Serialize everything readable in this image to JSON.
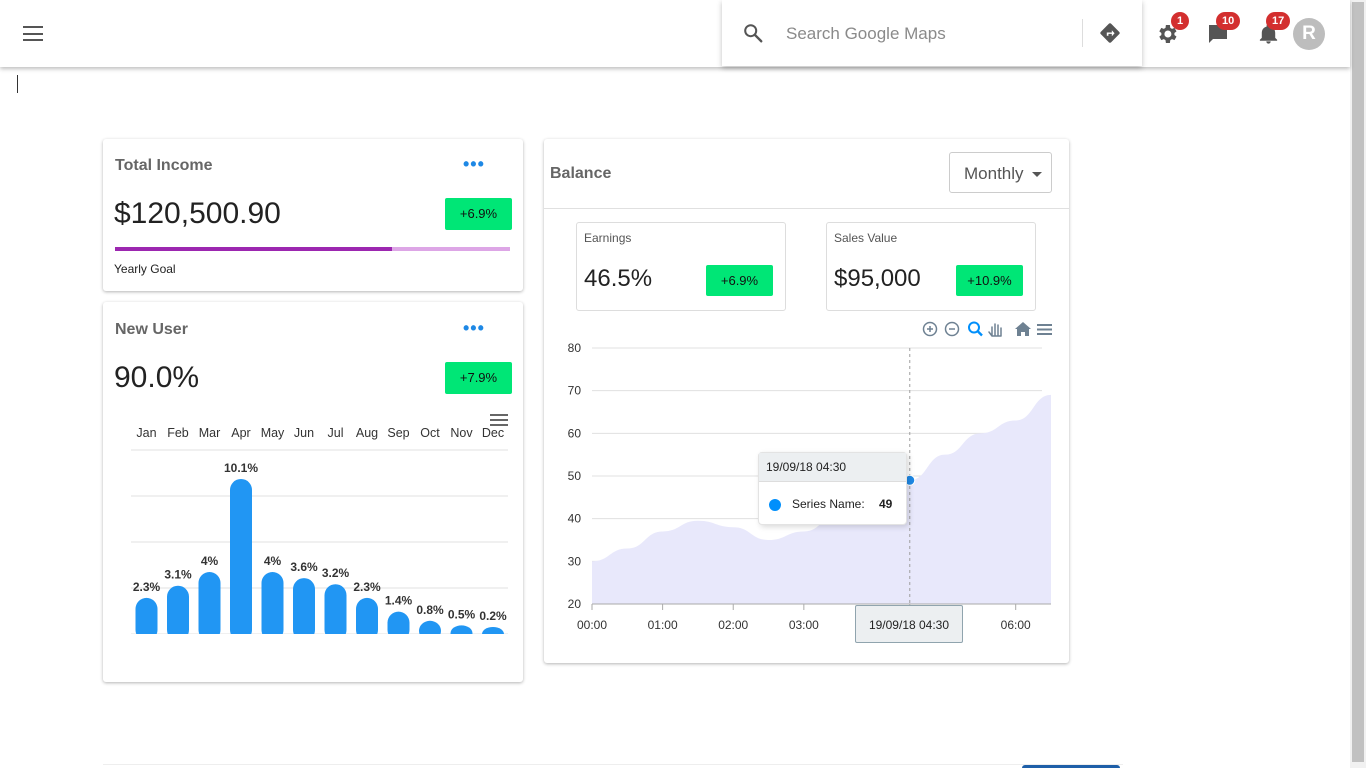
{
  "topbar": {
    "search": {
      "placeholder": "Search Google Maps"
    },
    "badges": {
      "settings": "1",
      "messages": "10",
      "notifications": "17"
    },
    "avatar_initial": "R"
  },
  "income": {
    "title": "Total Income",
    "value": "$120,500.90",
    "change": "+6.9%",
    "goal_label": "Yearly Goal",
    "goal_progress_percent": 70
  },
  "new_user": {
    "title": "New User",
    "value": "90.0%",
    "change": "+7.9%"
  },
  "balance": {
    "title": "Balance",
    "period_select": "Monthly",
    "earnings": {
      "label": "Earnings",
      "value": "46.5%",
      "change": "+6.9%"
    },
    "sales": {
      "label": "Sales Value",
      "value": "$95,000",
      "change": "+10.9%"
    },
    "tooltip": {
      "date": "19/09/18 04:30",
      "series_label": "Series Name:",
      "series_value": "49"
    },
    "crosshair_label": "19/09/18 04:30"
  },
  "colors": {
    "accent": "#1e88e5",
    "positive": "#00e676",
    "goal_bar": "#9c27b0",
    "goal_track": "#dda6e6",
    "area_fill": "#e8e8fb",
    "badge": "#d32f2f"
  },
  "chart_data": [
    {
      "type": "bar",
      "categories": [
        "Jan",
        "Feb",
        "Mar",
        "Apr",
        "May",
        "Jun",
        "Jul",
        "Aug",
        "Sep",
        "Oct",
        "Nov",
        "Dec"
      ],
      "values": [
        2.3,
        3.1,
        4,
        10.1,
        4,
        3.6,
        3.2,
        2.3,
        1.4,
        0.8,
        0.5,
        0.2
      ],
      "labels": [
        "2.3%",
        "3.1%",
        "4%",
        "10.1%",
        "4%",
        "3.6%",
        "3.2%",
        "2.3%",
        "1.4%",
        "0.8%",
        "0.5%",
        "0.2%"
      ],
      "xaxis_position": "top",
      "grid": true
    },
    {
      "type": "area",
      "x": [
        "00:00",
        "00:30",
        "01:00",
        "01:30",
        "02:00",
        "02:30",
        "03:00",
        "03:30",
        "04:00",
        "04:30",
        "05:00",
        "05:30",
        "06:00",
        "06:30"
      ],
      "series": [
        {
          "values": [
            30,
            33,
            37,
            39.5,
            38,
            35,
            37,
            41,
            45,
            49,
            55,
            60,
            63,
            69
          ]
        }
      ],
      "xticks": [
        "00:00",
        "01:00",
        "02:00",
        "03:00",
        "",
        "06:00"
      ],
      "yticks": [
        20,
        30,
        40,
        50,
        60,
        70,
        80
      ],
      "ylim": [
        20,
        80
      ],
      "highlight": {
        "x": "04:30",
        "y": 49
      },
      "grid": true
    }
  ]
}
